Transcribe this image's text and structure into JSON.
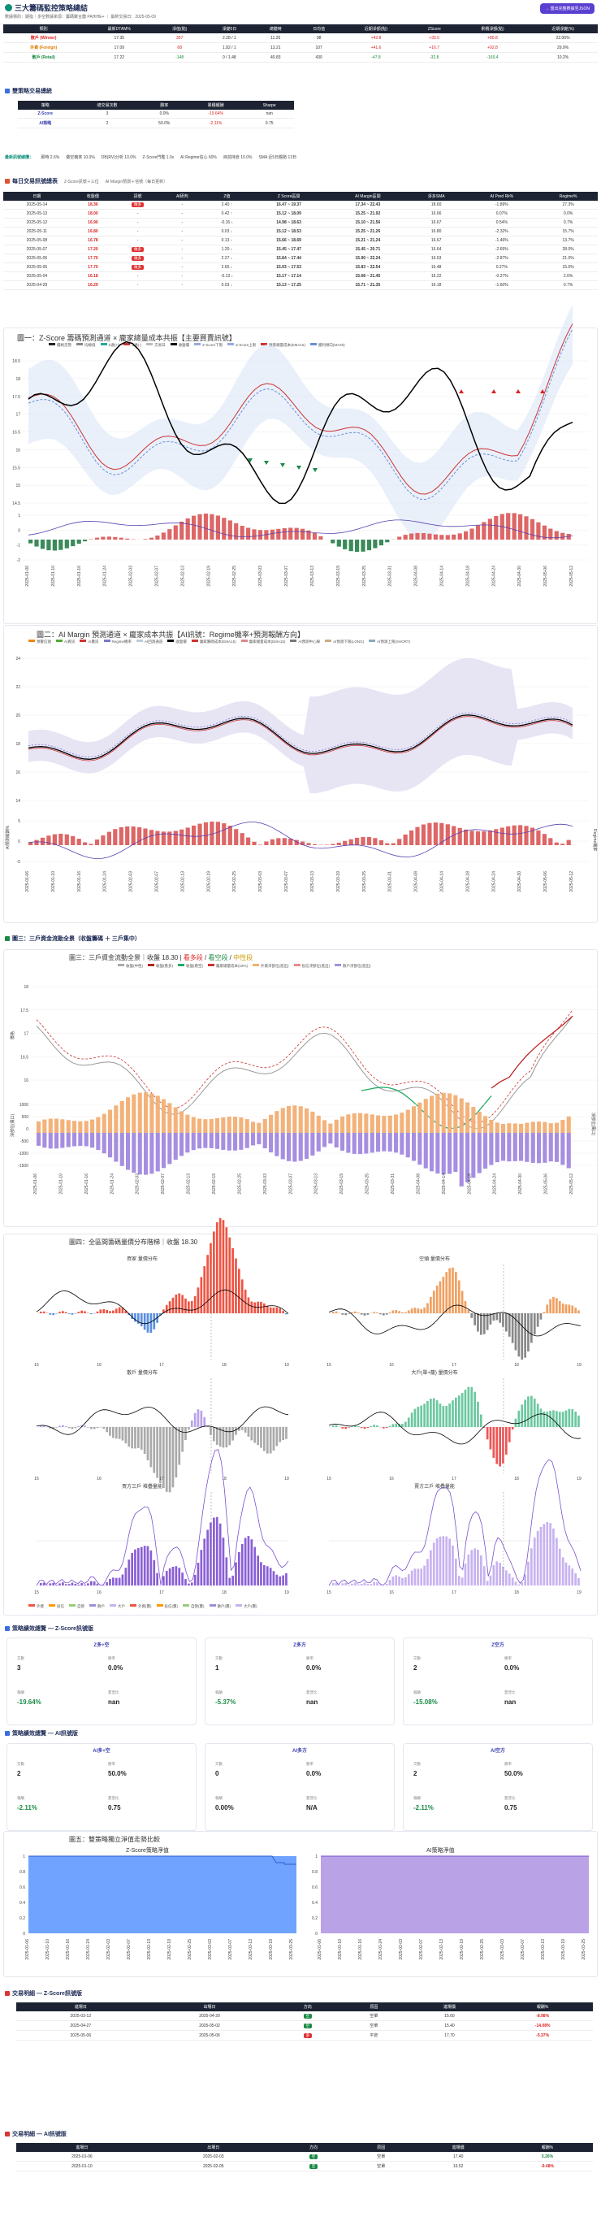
{
  "header": {
    "title": "三大籌碼監控策略總結",
    "subtitle": "數據標的：期指｜多空數據來源：籌碼聚合器 PAHIHE+ ｜ 最新交易日：2025-05-09",
    "export_label": "→ 匯出完整數據至JSON"
  },
  "summary": {
    "headers": [
      "類別",
      "最新DTAM%",
      "淨值(點)",
      "淨變5日",
      "總體時",
      "日均值",
      "近期淨額(點)",
      "ZScore",
      "累積淨額(點)",
      "近期淨變(%)"
    ],
    "rows": [
      [
        "散戶 (Winner)",
        "17.35",
        "357",
        "2.28 / 1",
        "11.25",
        "98",
        "+42.8",
        "+35.5",
        "+86.8",
        "22.00%"
      ],
      [
        "外資 (Foreign)",
        "17.09",
        "68",
        "1.82 / 1",
        "13.21",
        "107",
        "+41.6",
        "+16.7",
        "+92.8",
        "29.9%"
      ],
      [
        "散戶 (Retail)",
        "17.22",
        "-148",
        "0 / 1.48",
        "40.83",
        "430",
        "-47.8",
        "-32.8",
        "-169.4",
        "10.2%"
      ]
    ]
  },
  "exec_section": {
    "title": "雙策略交易總統",
    "headers": [
      "策略",
      "總交易次數",
      "勝率",
      "累積報酬",
      "Sharpe"
    ],
    "rows": [
      [
        "Z-Score",
        "3",
        "0.0%",
        "-19.64%",
        "nan"
      ],
      [
        "AI策略",
        "2",
        "50.0%",
        "-2.11%",
        "0.75"
      ]
    ]
  },
  "signal_bar": {
    "label": "最新訊號總攬：",
    "items": [
      "即時 2.6%",
      "做空機率 10.0%",
      "DB(RV)分析 10.0%",
      "Z-Score門檻 1.0x",
      "AI Regime信心 60%",
      "目前持倉 10.0%",
      "SMA 近5日趨勢 13日"
    ]
  },
  "daily": {
    "title": "每日交易訊號總表",
    "tabs": [
      "Z-Score訊號＋三位",
      "AI Margin預測＋信號（每日更新）"
    ],
    "headers": [
      "日期",
      "收盤價",
      "訊號",
      "AI研判",
      "Z值",
      "Z Score區間",
      "AI Margin區間",
      "淨多SMA",
      "AI Pred Rk%",
      "Regime%"
    ],
    "rows": [
      [
        "2025-05-14",
        "18.36",
        "做多",
        "-",
        "2.40 ↑",
        "16.47 ~ 19.37",
        "17.34 ~ 22.43",
        "18.60",
        "-1.89%",
        "27.3%"
      ],
      [
        "2025-05-13",
        "18.00",
        "-",
        "-",
        "0.42 ↑",
        "15.12 ~ 18.09",
        "15.25 ~ 21.92",
        "16.66",
        "0.07%",
        "0.0%"
      ],
      [
        "2025-05-12",
        "16.90",
        "-",
        "-",
        "-0.16 ↓",
        "14.98 ~ 18.63",
        "15.10 ~ 21.56",
        "16.67",
        "0.54%",
        "0.7%"
      ],
      [
        "2025-05-11",
        "16.80",
        "-",
        "-",
        "0.03 ↓",
        "15.12 ~ 18.53",
        "15.25 ~ 21.26",
        "16.80",
        "-2.32%",
        "15.7%"
      ],
      [
        "2025-05-08",
        "16.78",
        "-",
        "-",
        "0.13 ↓",
        "15.66 ~ 18.69",
        "15.21 ~ 21.24",
        "16.67",
        "-1.46%",
        "13.7%"
      ],
      [
        "2025-05-07",
        "17.20",
        "做多",
        "-",
        "1.20 ↓",
        "15.45 ~ 17.47",
        "15.45 ~ 20.71",
        "16.64",
        "-2.65%",
        "28.0%"
      ],
      [
        "2025-05-06",
        "17.70",
        "做多",
        "-",
        "2.27 ↓",
        "15.84 ~ 17.44",
        "15.90 ~ 22.24",
        "16.53",
        "-2.87%",
        "21.0%"
      ],
      [
        "2025-05-05",
        "17.70",
        "做多",
        "-",
        "2.65 ↓",
        "15.93 ~ 17.53",
        "15.83 ~ 22.54",
        "16.48",
        "0.27%",
        "15.6%"
      ],
      [
        "2025-05-04",
        "16.18",
        "-",
        "-",
        "-0.13 ↓",
        "15.17 ~ 17.14",
        "15.68 ~ 21.45",
        "16.22",
        "-0.27%",
        "2.6%"
      ],
      [
        "2025-04-29",
        "16.29",
        "-",
        "-",
        "0.03 ↓",
        "15.13 ~ 17.25",
        "15.71 ~ 21.35",
        "16.18",
        "-1.60%",
        "0.7%"
      ]
    ]
  },
  "chart1": {
    "title": "圖一：Z-Score 籌碼預測通道 × 龐家總量成本共振【主要買賣訊號】",
    "legend": [
      "價格走勢",
      "均線值",
      "Z通(+)",
      "Z通(-)",
      "交易日",
      "收盤價",
      "Z-Score下限",
      "Z-Score上限",
      "龐家總量成本(EMA15)",
      "獲利傾向(MA20)"
    ]
  },
  "chart2": {
    "title": "圖二：AI Margin 預測通道 × 龐家成本共振【AI訊號：Regime機率+預測報酬方向】",
    "legend": [
      "預警信號",
      "AI買訊",
      "AI賣訊",
      "Regime機率",
      "AI回測通道",
      "收盤價",
      "龐家籌碼成本(EMA15)",
      "龐家總量成本(EMA15)",
      "AI預測中心線",
      "AI預測下限(LONG)",
      "AI預測上限(SHORT)"
    ],
    "yl": "AI預測報酬%",
    "yr": "Regime機率"
  },
  "sec3": {
    "title": "圖三：三戶資金流動全景（收盤籌碼 ＋ 三戶集中）"
  },
  "chart3": {
    "title": "圖三：三戶資金流動全景｜收盤 18.30 |",
    "t_a": "看多段",
    "t_b": "看空段",
    "t_c": "中性段",
    "legend": [
      "收盤(中性)",
      "收盤(看多)",
      "收盤(看空)",
      "龐家總量成本(18%)",
      "外資淨部位(進出)",
      "投信淨部位(進出)",
      "散戶淨部位(進出)"
    ],
    "yl": "價格",
    "yl2": "淨部位(萬口)",
    "yr2": "淨部位(萬口)"
  },
  "chart4": {
    "title": "圖四：全區間籌碼量價分布階梯｜收盤 18.30",
    "panels": [
      "買家 量價分布",
      "空頭 量價分布",
      "散戶 量價分布",
      "大戶(單+籠) 量價分布",
      "買方三戶 堆疊量能",
      "賣方三戶 堆疊量能"
    ],
    "legend": [
      "外資",
      "投信",
      "自營",
      "散戶",
      "大戶",
      "外資(賣)",
      "投信(賣)",
      "自營(賣)",
      "散戶(賣)",
      "大戶(賣)"
    ]
  },
  "zperf": {
    "title": "策略績效總覽 — Z-Score訊號版",
    "cards": [
      {
        "name": "Z多+空",
        "trades": "3",
        "win": "0.0%",
        "ret": "-19.64%",
        "sharpe": "nan"
      },
      {
        "name": "Z多方",
        "trades": "1",
        "win": "0.0%",
        "ret": "-5.37%",
        "sharpe": "nan"
      },
      {
        "name": "Z空方",
        "trades": "2",
        "win": "0.0%",
        "ret": "-15.08%",
        "sharpe": "nan"
      }
    ],
    "labels": [
      "交數",
      "勝率",
      "報酬",
      "夏普比"
    ]
  },
  "aiperf": {
    "title": "策略績效總覽 — AI訊號版",
    "cards": [
      {
        "name": "AI多+空",
        "trades": "2",
        "win": "50.0%",
        "ret": "-2.11%",
        "sharpe": "0.75"
      },
      {
        "name": "AI多方",
        "trades": "0",
        "win": "0.0%",
        "ret": "0.00%",
        "sharpe": "N/A"
      },
      {
        "name": "AI空方",
        "trades": "2",
        "win": "50.0%",
        "ret": "-2.11%",
        "sharpe": "0.75"
      }
    ]
  },
  "chart5": {
    "title": "圖五：雙策略獨立淨值走勢比較",
    "left": "Z-Score策略淨值",
    "right": "AI策略淨值",
    "legend": [
      "Z淨值",
      "Z多",
      "Z空",
      "AI淨值",
      "AI多",
      "AI空"
    ]
  },
  "ztrades": {
    "title": "交易明細 — Z-Score訊號版",
    "headers": [
      "進場日",
      "出場日",
      "方向",
      "原因",
      "進場價",
      "報酬%"
    ],
    "rows": [
      [
        "2025-03-12",
        "2025-04-20",
        "空",
        "空單",
        "15.60",
        "-8.98%"
      ],
      [
        "2025-04-27",
        "2025-05-02",
        "空",
        "空單",
        "15.40",
        "-14.08%"
      ],
      [
        "2025-05-06",
        "2025-05-06",
        "多",
        "平倉",
        "17.70",
        "-5.37%"
      ]
    ]
  },
  "aitrades": {
    "title": "交易明細 — AI訊號版",
    "headers": [
      "進場日",
      "出場日",
      "方向",
      "原因",
      "進場價",
      "報酬%"
    ],
    "rows": [
      [
        "2025-01-06",
        "2025-02-03",
        "空",
        "空單",
        "17.40",
        "5.26%"
      ],
      [
        "2025-01-10",
        "2025-02-05",
        "空",
        "空單",
        "16.52",
        "-9.48%"
      ]
    ]
  }
}
